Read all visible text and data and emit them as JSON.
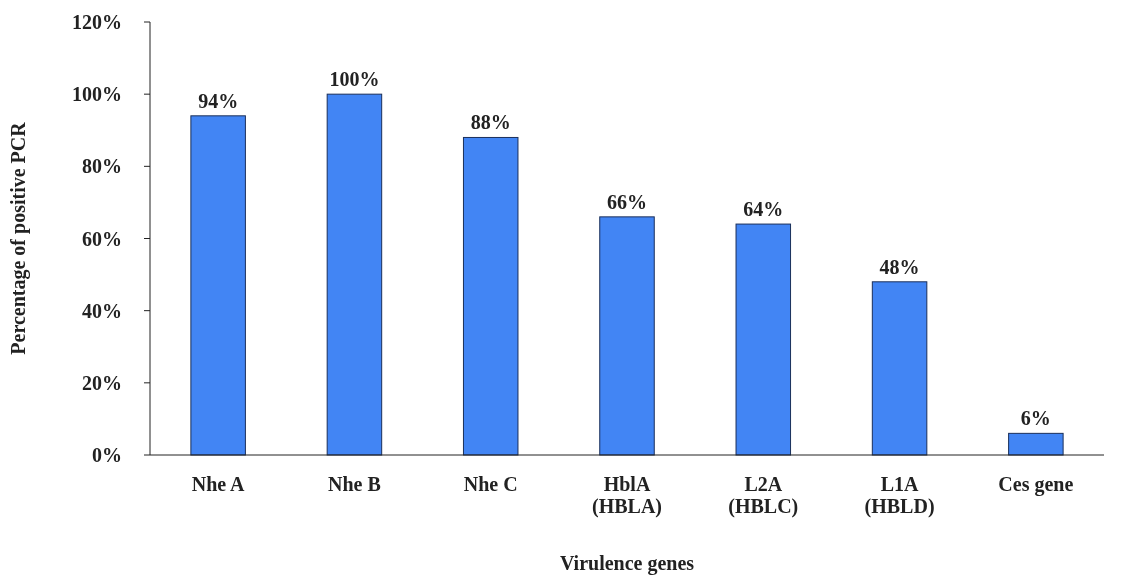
{
  "chart_data": {
    "type": "bar",
    "xlabel": "Virulence genes",
    "ylabel": "Percentage of positive PCR",
    "categories": [
      "Nhe A",
      "Nhe B",
      "Nhe C",
      "HblA (HBLA)",
      "L2A (HBLC)",
      "L1A (HBLD)",
      "Ces gene"
    ],
    "values": [
      94,
      100,
      88,
      66,
      64,
      48,
      6
    ],
    "color": "#4285f4",
    "value_labels": [
      "94%",
      "100%",
      "88%",
      "66%",
      "64%",
      "48%",
      "6%"
    ],
    "ylim": [
      0,
      120
    ],
    "yticks": [
      {
        "value": 0,
        "label": "0%"
      },
      {
        "value": 20,
        "label": "20%"
      },
      {
        "value": 40,
        "label": "40%"
      },
      {
        "value": 60,
        "label": "60%"
      },
      {
        "value": 80,
        "label": "80%"
      },
      {
        "value": 100,
        "label": "100%"
      },
      {
        "value": 120,
        "label": "120%"
      }
    ],
    "grid": false
  }
}
